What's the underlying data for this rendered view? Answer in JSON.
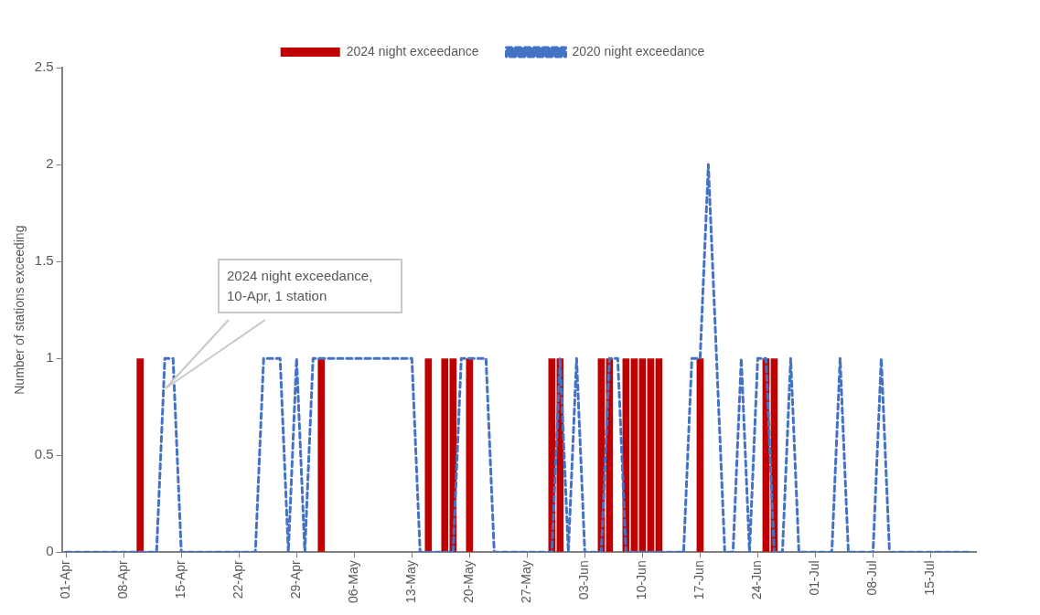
{
  "chart_data": {
    "type": "bar",
    "categories": [
      "01-Apr",
      null,
      null,
      null,
      null,
      null,
      null,
      "08-Apr",
      null,
      null,
      null,
      null,
      null,
      null,
      "15-Apr",
      null,
      null,
      null,
      null,
      null,
      null,
      "22-Apr",
      null,
      null,
      null,
      null,
      null,
      null,
      "29-Apr",
      null,
      null,
      null,
      null,
      null,
      null,
      "06-May",
      null,
      null,
      null,
      null,
      null,
      null,
      "13-May",
      null,
      null,
      null,
      null,
      null,
      null,
      "20-May",
      null,
      null,
      null,
      null,
      null,
      null,
      "27-May",
      null,
      null,
      null,
      null,
      null,
      null,
      "03-Jun",
      null,
      null,
      null,
      null,
      null,
      null,
      "10-Jun",
      null,
      null,
      null,
      null,
      null,
      null,
      "17-Jun",
      null,
      null,
      null,
      null,
      null,
      null,
      "24-Jun",
      null,
      null,
      null,
      null,
      null,
      null,
      "01-Jul",
      null,
      null,
      null,
      null,
      null,
      null,
      "08-Jul",
      null,
      null,
      null,
      null,
      null,
      null,
      "15-Jul",
      null,
      null,
      null,
      null,
      null
    ],
    "series": [
      {
        "name": "2024 night exceedance",
        "color": "#c00000",
        "values": [
          0,
          0,
          0,
          0,
          0,
          0,
          0,
          0,
          0,
          1,
          0,
          0,
          0,
          0,
          0,
          0,
          0,
          0,
          0,
          0,
          0,
          0,
          0,
          0,
          0,
          0,
          0,
          0,
          0,
          0,
          0,
          1,
          0,
          0,
          0,
          0,
          0,
          0,
          0,
          0,
          0,
          0,
          0,
          0,
          1,
          0,
          1,
          1,
          0,
          1,
          0,
          0,
          0,
          0,
          0,
          0,
          0,
          0,
          0,
          1,
          1,
          0,
          0,
          0,
          0,
          1,
          1,
          0,
          1,
          1,
          1,
          1,
          1,
          0,
          0,
          0,
          0,
          1,
          0,
          0,
          0,
          0,
          0,
          0,
          0,
          1,
          1,
          0,
          0,
          0,
          0,
          0,
          0,
          0,
          0,
          0,
          0,
          0,
          0,
          0,
          0,
          0,
          0,
          0,
          0,
          0,
          0,
          0,
          0,
          0,
          0
        ]
      },
      {
        "name": "2020 night exceedance",
        "type": "line",
        "color": "#4472c4",
        "line_style": "dashed",
        "values": [
          0,
          0,
          0,
          0,
          0,
          0,
          0,
          0,
          0,
          0,
          0,
          0,
          1,
          1,
          0,
          0,
          0,
          0,
          0,
          0,
          0,
          0,
          0,
          0,
          1,
          1,
          1,
          0,
          1,
          0,
          1,
          1,
          1,
          1,
          1,
          1,
          1,
          1,
          1,
          1,
          1,
          1,
          1,
          0,
          0,
          0,
          0,
          0,
          1,
          1,
          1,
          1,
          0,
          0,
          0,
          0,
          0,
          0,
          0,
          0,
          1,
          0,
          1,
          0,
          0,
          0,
          1,
          1,
          0,
          0,
          0,
          0,
          0,
          0,
          0,
          0,
          1,
          1,
          2,
          1,
          0,
          0,
          1,
          0,
          1,
          1,
          0,
          0,
          1,
          0,
          0,
          0,
          0,
          0,
          1,
          0,
          0,
          0,
          0,
          1,
          0,
          0,
          0,
          0,
          0,
          0,
          0,
          0,
          0,
          0,
          0
        ]
      }
    ],
    "ylabel": "Number of stations exceeding",
    "ylim": [
      0,
      2.5
    ],
    "yticks": [
      0,
      0.5,
      1,
      1.5,
      2,
      2.5
    ],
    "grid": false,
    "legend": "top",
    "marker": "none",
    "annotations": [
      "2024 night exceedance, 10-Apr, 1 station"
    ]
  }
}
